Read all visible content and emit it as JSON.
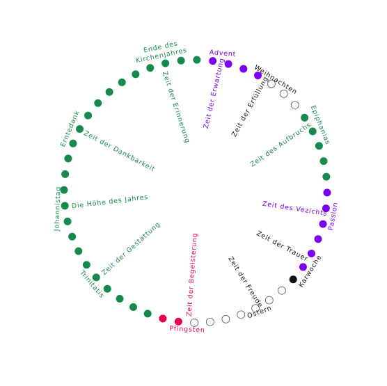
{
  "palette": {
    "green": "#16894c",
    "purple": "#7b00f2",
    "red": "#ea0050",
    "black": "#111111",
    "white": "#ffffff"
  },
  "dots": [
    "purple",
    "purple",
    "purple",
    "purple",
    "white",
    "white",
    "white",
    "green",
    "green",
    "green",
    "green",
    "green",
    "purple",
    "purple",
    "purple",
    "purple",
    "purple",
    "purple",
    "black",
    "white",
    "white",
    "white",
    "white",
    "white",
    "white",
    "white",
    "red",
    "red",
    "green",
    "green",
    "green",
    "green",
    "green",
    "green",
    "green",
    "green",
    "green",
    "green",
    "green",
    "green",
    "green",
    "green",
    "green",
    "green",
    "green",
    "green",
    "green",
    "green",
    "green",
    "green",
    "green",
    "green"
  ],
  "labels": [
    {
      "text": "Ende des",
      "color": "green"
    },
    {
      "text": "Kirchenjahres",
      "color": "green"
    },
    {
      "text": "Advent",
      "color": "purple"
    },
    {
      "text": "Weihnachten",
      "color": "black"
    },
    {
      "text": "Epiphanias",
      "color": "green"
    },
    {
      "text": "Passion",
      "color": "purple"
    },
    {
      "text": "Karwoche",
      "color": "black"
    },
    {
      "text": "Ostern",
      "color": "black"
    },
    {
      "text": "Pfingsten",
      "color": "red"
    },
    {
      "text": "Trinitatis",
      "color": "green"
    },
    {
      "text": "Johannistag",
      "color": "green"
    },
    {
      "text": "Erntedank",
      "color": "green"
    },
    {
      "text": "Zeit der Erinnerung",
      "color": "green"
    },
    {
      "text": "Zeit der Erwartung",
      "color": "purple"
    },
    {
      "text": "Zeit der Erfüllung",
      "color": "black"
    },
    {
      "text": "Zeit des Aufbruchs",
      "color": "green"
    },
    {
      "text": "Zeit des Vezichts",
      "color": "purple"
    },
    {
      "text": "Zeit der Trauer",
      "color": "black"
    },
    {
      "text": "Zeit der Freude",
      "color": "black"
    },
    {
      "text": "Zeit der Begeisterung",
      "color": "red"
    },
    {
      "text": "Zeit der Gestattung",
      "color": "green"
    },
    {
      "text": "Die Höhe des Jahres",
      "color": "green"
    },
    {
      "text": "Zeit der Dankbarkeit",
      "color": "green"
    }
  ]
}
